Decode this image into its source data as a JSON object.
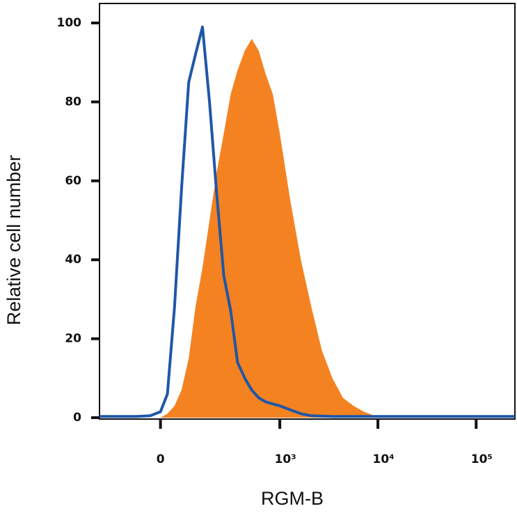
{
  "chart_data": {
    "type": "line",
    "x_label": "RGM-B",
    "y_label": "Relative cell number",
    "xscale": "arcsinh",
    "x": [
      -241,
      -74,
      -30,
      0,
      20,
      41,
      63,
      87,
      112,
      141,
      174,
      212,
      256,
      306,
      363,
      433,
      513,
      606,
      717,
      846,
      1000,
      1281,
      1642,
      2101,
      2690,
      3443,
      4407,
      5641,
      7221,
      9240,
      12800,
      24800,
      56300,
      128500,
      248000
    ],
    "series": [
      {
        "color": "#f58220",
        "filled": true,
        "values": [
          0,
          0,
          0,
          0,
          1,
          3,
          7,
          15,
          28,
          38,
          50,
          62,
          72,
          82,
          88,
          93,
          96,
          93,
          87,
          82,
          72,
          55,
          40,
          28,
          17,
          10,
          5,
          3,
          1.5,
          0.5,
          0,
          0,
          0,
          0,
          0
        ]
      },
      {
        "color": "#1f57a8",
        "filled": false,
        "values": [
          0.3,
          0.3,
          0.5,
          1.5,
          6,
          28,
          58,
          85,
          92,
          99,
          80,
          57,
          36,
          27,
          14,
          10,
          7,
          5,
          4,
          3.5,
          3,
          2,
          1,
          0.5,
          0.4,
          0.3,
          0.3,
          0.3,
          0.3,
          0.3,
          0.3,
          0.3,
          0.3,
          0.3,
          0.3
        ]
      }
    ],
    "xlim": [
      -241,
      248000
    ],
    "xticks": [
      0,
      {
        "value": 1000,
        "label": "10³"
      },
      {
        "value": 10000,
        "label": "10⁴"
      },
      {
        "value": 100000,
        "label": "10⁵"
      }
    ],
    "ylim": [
      0,
      100
    ],
    "yticks": [
      0,
      20,
      40,
      60,
      80,
      100
    ]
  }
}
